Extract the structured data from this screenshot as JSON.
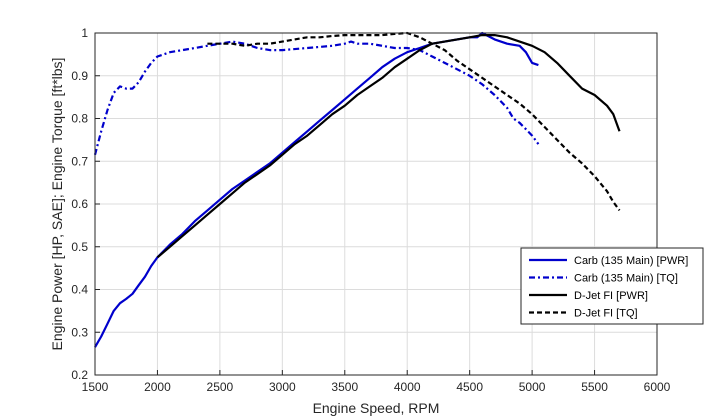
{
  "chart_data": {
    "type": "line",
    "xlabel": "Engine Speed, RPM",
    "ylabel": "Engine Power [HP, SAE]; Engine Torque [ft*lbs]",
    "xlim": [
      1500,
      6000
    ],
    "ylim": [
      0.2,
      1.0
    ],
    "xticks": [
      1500,
      2000,
      2500,
      3000,
      3500,
      4000,
      4500,
      5000,
      5500,
      6000
    ],
    "yticks": [
      0.2,
      0.3,
      0.4,
      0.5,
      0.6,
      0.7,
      0.8,
      0.9,
      1.0
    ],
    "xtick_labels": [
      "1500",
      "2000",
      "2500",
      "3000",
      "3500",
      "4000",
      "4500",
      "5000",
      "5500",
      "6000"
    ],
    "ytick_labels": [
      "0.2",
      "0.3",
      "0.4",
      "0.5",
      "0.6",
      "0.7",
      "0.8",
      "0.9",
      "1"
    ],
    "grid": true,
    "legend_position": "lower-right",
    "series": [
      {
        "name": "Carb (135 Main) [PWR]",
        "color": "#0000cc",
        "dash": "solid",
        "width": 2.2,
        "points": [
          [
            1500,
            0.265
          ],
          [
            1550,
            0.29
          ],
          [
            1600,
            0.32
          ],
          [
            1650,
            0.35
          ],
          [
            1700,
            0.368
          ],
          [
            1750,
            0.378
          ],
          [
            1800,
            0.39
          ],
          [
            1850,
            0.41
          ],
          [
            1900,
            0.43
          ],
          [
            1950,
            0.455
          ],
          [
            2000,
            0.475
          ],
          [
            2100,
            0.505
          ],
          [
            2200,
            0.53
          ],
          [
            2300,
            0.56
          ],
          [
            2400,
            0.585
          ],
          [
            2500,
            0.61
          ],
          [
            2600,
            0.635
          ],
          [
            2700,
            0.655
          ],
          [
            2800,
            0.675
          ],
          [
            2900,
            0.695
          ],
          [
            3000,
            0.72
          ],
          [
            3100,
            0.745
          ],
          [
            3200,
            0.77
          ],
          [
            3300,
            0.795
          ],
          [
            3400,
            0.82
          ],
          [
            3500,
            0.845
          ],
          [
            3600,
            0.87
          ],
          [
            3700,
            0.895
          ],
          [
            3800,
            0.92
          ],
          [
            3900,
            0.94
          ],
          [
            4000,
            0.955
          ],
          [
            4100,
            0.965
          ],
          [
            4200,
            0.975
          ],
          [
            4300,
            0.98
          ],
          [
            4400,
            0.985
          ],
          [
            4500,
            0.99
          ],
          [
            4560,
            0.99
          ],
          [
            4600,
            1.0
          ],
          [
            4700,
            0.985
          ],
          [
            4800,
            0.975
          ],
          [
            4900,
            0.97
          ],
          [
            4950,
            0.955
          ],
          [
            5000,
            0.93
          ],
          [
            5050,
            0.925
          ]
        ]
      },
      {
        "name": "Carb (135 Main) [TQ]",
        "color": "#0000cc",
        "dash": "6,3,2,3",
        "width": 2.2,
        "points": [
          [
            1500,
            0.715
          ],
          [
            1550,
            0.77
          ],
          [
            1600,
            0.82
          ],
          [
            1650,
            0.86
          ],
          [
            1700,
            0.875
          ],
          [
            1750,
            0.87
          ],
          [
            1800,
            0.87
          ],
          [
            1850,
            0.885
          ],
          [
            1900,
            0.91
          ],
          [
            1950,
            0.93
          ],
          [
            2000,
            0.945
          ],
          [
            2100,
            0.955
          ],
          [
            2200,
            0.96
          ],
          [
            2300,
            0.965
          ],
          [
            2400,
            0.97
          ],
          [
            2500,
            0.975
          ],
          [
            2600,
            0.98
          ],
          [
            2700,
            0.975
          ],
          [
            2800,
            0.965
          ],
          [
            2900,
            0.96
          ],
          [
            3000,
            0.96
          ],
          [
            3200,
            0.965
          ],
          [
            3400,
            0.97
          ],
          [
            3500,
            0.975
          ],
          [
            3550,
            0.98
          ],
          [
            3600,
            0.975
          ],
          [
            3700,
            0.975
          ],
          [
            3800,
            0.97
          ],
          [
            3900,
            0.965
          ],
          [
            4000,
            0.965
          ],
          [
            4100,
            0.96
          ],
          [
            4200,
            0.945
          ],
          [
            4300,
            0.93
          ],
          [
            4400,
            0.915
          ],
          [
            4500,
            0.9
          ],
          [
            4600,
            0.88
          ],
          [
            4700,
            0.855
          ],
          [
            4800,
            0.825
          ],
          [
            4850,
            0.8
          ],
          [
            4900,
            0.79
          ],
          [
            4950,
            0.775
          ],
          [
            5000,
            0.76
          ],
          [
            5050,
            0.74
          ]
        ]
      },
      {
        "name": "D-Jet FI [PWR]",
        "color": "#000000",
        "dash": "solid",
        "width": 2.2,
        "points": [
          [
            2000,
            0.475
          ],
          [
            2100,
            0.5
          ],
          [
            2200,
            0.525
          ],
          [
            2300,
            0.55
          ],
          [
            2400,
            0.575
          ],
          [
            2500,
            0.6
          ],
          [
            2600,
            0.625
          ],
          [
            2700,
            0.65
          ],
          [
            2800,
            0.67
          ],
          [
            2900,
            0.69
          ],
          [
            3000,
            0.715
          ],
          [
            3100,
            0.74
          ],
          [
            3200,
            0.76
          ],
          [
            3300,
            0.785
          ],
          [
            3400,
            0.81
          ],
          [
            3500,
            0.83
          ],
          [
            3600,
            0.855
          ],
          [
            3700,
            0.875
          ],
          [
            3800,
            0.895
          ],
          [
            3900,
            0.92
          ],
          [
            4000,
            0.94
          ],
          [
            4100,
            0.96
          ],
          [
            4200,
            0.975
          ],
          [
            4300,
            0.98
          ],
          [
            4400,
            0.985
          ],
          [
            4500,
            0.99
          ],
          [
            4600,
            0.995
          ],
          [
            4700,
            0.995
          ],
          [
            4800,
            0.99
          ],
          [
            4900,
            0.98
          ],
          [
            5000,
            0.97
          ],
          [
            5100,
            0.955
          ],
          [
            5200,
            0.93
          ],
          [
            5300,
            0.9
          ],
          [
            5400,
            0.87
          ],
          [
            5500,
            0.855
          ],
          [
            5600,
            0.83
          ],
          [
            5650,
            0.81
          ],
          [
            5700,
            0.77
          ]
        ]
      },
      {
        "name": "D-Jet FI [TQ]",
        "color": "#000000",
        "dash": "5,3",
        "width": 2.2,
        "points": [
          [
            2400,
            0.975
          ],
          [
            2500,
            0.975
          ],
          [
            2600,
            0.975
          ],
          [
            2700,
            0.97
          ],
          [
            2800,
            0.975
          ],
          [
            2900,
            0.975
          ],
          [
            3000,
            0.98
          ],
          [
            3100,
            0.985
          ],
          [
            3200,
            0.99
          ],
          [
            3300,
            0.99
          ],
          [
            3400,
            0.993
          ],
          [
            3500,
            0.995
          ],
          [
            3600,
            0.995
          ],
          [
            3700,
            0.995
          ],
          [
            3800,
            0.995
          ],
          [
            3900,
            0.998
          ],
          [
            4000,
            1.0
          ],
          [
            4100,
            0.99
          ],
          [
            4200,
            0.975
          ],
          [
            4300,
            0.96
          ],
          [
            4400,
            0.935
          ],
          [
            4500,
            0.915
          ],
          [
            4600,
            0.895
          ],
          [
            4700,
            0.875
          ],
          [
            4800,
            0.855
          ],
          [
            4900,
            0.835
          ],
          [
            5000,
            0.81
          ],
          [
            5100,
            0.78
          ],
          [
            5200,
            0.75
          ],
          [
            5300,
            0.72
          ],
          [
            5400,
            0.695
          ],
          [
            5500,
            0.665
          ],
          [
            5600,
            0.63
          ],
          [
            5650,
            0.605
          ],
          [
            5700,
            0.585
          ]
        ]
      }
    ]
  }
}
